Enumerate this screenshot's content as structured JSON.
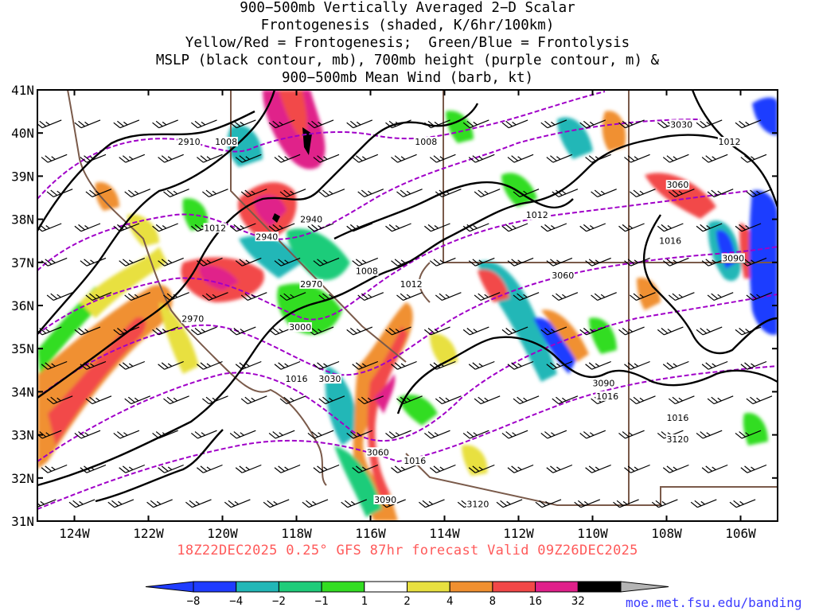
{
  "title_lines": [
    "900−500mb Vertically Averaged 2−D Scalar",
    "Frontogenesis (shaded, K/6hr/100km)",
    "Yellow/Red = Frontogenesis;  Green/Blue = Frontolysis",
    "MSLP (black contour, mb), 700mb height (purple contour, m) &",
    "900−500mb Mean Wind (barb, kt)"
  ],
  "footer": "18Z22DEC2025 0.25° GFS 87hr forecast Valid 09Z26DEC2025",
  "credit": "moe.met.fsu.edu/banding",
  "map": {
    "lon_range": [
      -125,
      -105
    ],
    "lat_range": [
      31,
      41
    ],
    "lon_tick_labels": [
      "124W",
      "122W",
      "120W",
      "118W",
      "116W",
      "114W",
      "112W",
      "110W",
      "108W",
      "106W"
    ],
    "lat_tick_labels": [
      "31N",
      "32N",
      "33N",
      "34N",
      "35N",
      "36N",
      "37N",
      "38N",
      "39N",
      "40N",
      "41N"
    ]
  },
  "colorbar": {
    "labels": [
      "−8",
      "−4",
      "−2",
      "−1",
      "1",
      "2",
      "4",
      "8",
      "16",
      "32"
    ],
    "colors": [
      "#1f3cff",
      "#22b7b7",
      "#1fcc7a",
      "#33dd22",
      "#ffffff",
      "#e8e040",
      "#f09030",
      "#f24848",
      "#e0208a",
      "#000000"
    ],
    "over_color": "#b4b4b4"
  },
  "contour_colors": {
    "mslp": "#000000",
    "height700": "#a000c8",
    "borders": "#7a5a4a"
  },
  "contour_labels": [
    {
      "text": "2910",
      "lon": -120.9,
      "lat": 39.8
    },
    {
      "text": "1008",
      "lon": -119.9,
      "lat": 39.8
    },
    {
      "text": "1008",
      "lon": -114.5,
      "lat": 39.8
    },
    {
      "text": "3030",
      "lon": -107.6,
      "lat": 40.2
    },
    {
      "text": "1012",
      "lon": -106.3,
      "lat": 39.8
    },
    {
      "text": "3060",
      "lon": -107.7,
      "lat": 38.8
    },
    {
      "text": "2940",
      "lon": -117.6,
      "lat": 38.0
    },
    {
      "text": "1012",
      "lon": -111.5,
      "lat": 38.1
    },
    {
      "text": "1012",
      "lon": -120.2,
      "lat": 37.8
    },
    {
      "text": "2940",
      "lon": -118.8,
      "lat": 37.6
    },
    {
      "text": "1016",
      "lon": -107.9,
      "lat": 37.5
    },
    {
      "text": "3090",
      "lon": -106.2,
      "lat": 37.1
    },
    {
      "text": "1008",
      "lon": -116.1,
      "lat": 36.8
    },
    {
      "text": "3060",
      "lon": -110.8,
      "lat": 36.7
    },
    {
      "text": "2970",
      "lon": -117.6,
      "lat": 36.5
    },
    {
      "text": "1012",
      "lon": -114.9,
      "lat": 36.5
    },
    {
      "text": "2970",
      "lon": -120.8,
      "lat": 35.7
    },
    {
      "text": "3000",
      "lon": -117.9,
      "lat": 35.5
    },
    {
      "text": "1016",
      "lon": -118.0,
      "lat": 34.3
    },
    {
      "text": "3030",
      "lon": -117.1,
      "lat": 34.3
    },
    {
      "text": "3090",
      "lon": -109.7,
      "lat": 34.2
    },
    {
      "text": "1016",
      "lon": -109.6,
      "lat": 33.9
    },
    {
      "text": "1016",
      "lon": -107.7,
      "lat": 33.4
    },
    {
      "text": "3120",
      "lon": -107.7,
      "lat": 32.9
    },
    {
      "text": "3060",
      "lon": -115.8,
      "lat": 32.6
    },
    {
      "text": "1016",
      "lon": -114.8,
      "lat": 32.4
    },
    {
      "text": "3090",
      "lon": -115.6,
      "lat": 31.5
    },
    {
      "text": "3120",
      "lon": -113.1,
      "lat": 31.4
    }
  ]
}
